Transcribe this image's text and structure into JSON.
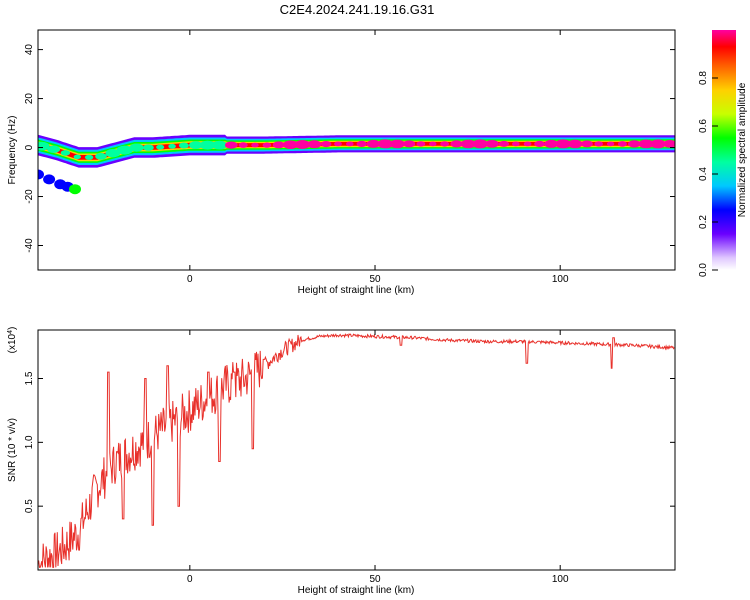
{
  "title": "C2E4.2024.241.19.16.G31",
  "chart_data": [
    {
      "type": "heatmap",
      "xlabel": "Height of straight line (km)",
      "ylabel": "Frequency (Hz)",
      "xlim": [
        -41,
        131
      ],
      "ylim": [
        -50,
        48
      ],
      "xticks": [
        0,
        50,
        100
      ],
      "yticks": [
        -40,
        -20,
        0,
        20,
        40
      ],
      "colorbar": {
        "label": "Normalized spectral amplitude",
        "range": [
          0,
          1
        ],
        "ticks": [
          "0.0",
          "0.2",
          "0.4",
          "0.6",
          "0.8"
        ]
      },
      "ridge": [
        [
          -41,
          1
        ],
        [
          -36,
          -1
        ],
        [
          -30,
          -4
        ],
        [
          -25,
          -4
        ],
        [
          -20,
          -2
        ],
        [
          -15,
          0
        ],
        [
          -10,
          0
        ],
        [
          -5,
          0.5
        ],
        [
          0,
          1
        ],
        [
          10,
          1
        ],
        [
          20,
          1
        ],
        [
          40,
          1.5
        ],
        [
          60,
          1.5
        ],
        [
          90,
          1.5
        ],
        [
          110,
          1.5
        ],
        [
          131,
          1.5
        ]
      ],
      "secondary_branch": [
        [
          -41,
          -11
        ],
        [
          -38,
          -13
        ],
        [
          -35,
          -15
        ],
        [
          -33,
          -16
        ],
        [
          -31,
          -17
        ]
      ]
    },
    {
      "type": "line",
      "xlabel": "Height of straight line (km)",
      "ylabel": "SNR (10 * v/v)",
      "y_multiplier": "(x10",
      "y_multiplier_exp": "4",
      "xlim": [
        -41,
        131
      ],
      "ylim": [
        0,
        1.88
      ],
      "xticks": [
        0,
        50,
        100
      ],
      "yticks": [
        0.5,
        1.0,
        1.5
      ],
      "color": "#e8302a",
      "trend": [
        [
          -41,
          0.05
        ],
        [
          -35,
          0.15
        ],
        [
          -30,
          0.3
        ],
        [
          -25,
          0.65
        ],
        [
          -20,
          0.85
        ],
        [
          -15,
          0.95
        ],
        [
          -10,
          1.05
        ],
        [
          -5,
          1.15
        ],
        [
          0,
          1.25
        ],
        [
          5,
          1.35
        ],
        [
          10,
          1.45
        ],
        [
          15,
          1.5
        ],
        [
          20,
          1.6
        ],
        [
          25,
          1.72
        ],
        [
          30,
          1.8
        ],
        [
          35,
          1.83
        ],
        [
          40,
          1.84
        ],
        [
          50,
          1.83
        ],
        [
          60,
          1.82
        ],
        [
          70,
          1.8
        ],
        [
          80,
          1.79
        ],
        [
          90,
          1.79
        ],
        [
          100,
          1.78
        ],
        [
          110,
          1.77
        ],
        [
          120,
          1.76
        ],
        [
          131,
          1.74
        ]
      ],
      "spikes": [
        [
          -22,
          1.55
        ],
        [
          -18,
          0.4
        ],
        [
          -12,
          1.5
        ],
        [
          -10,
          0.35
        ],
        [
          -6,
          1.6
        ],
        [
          -3,
          0.5
        ],
        [
          5,
          1.55
        ],
        [
          8,
          0.85
        ],
        [
          12,
          1.55
        ],
        [
          17,
          0.95
        ],
        [
          20,
          1.65
        ],
        [
          91,
          1.62
        ],
        [
          114,
          1.58
        ],
        [
          57,
          1.76
        ],
        [
          114.5,
          1.82
        ]
      ]
    }
  ],
  "colors": {
    "line": "#e8302a",
    "background_heatmap": "#ffffff"
  }
}
